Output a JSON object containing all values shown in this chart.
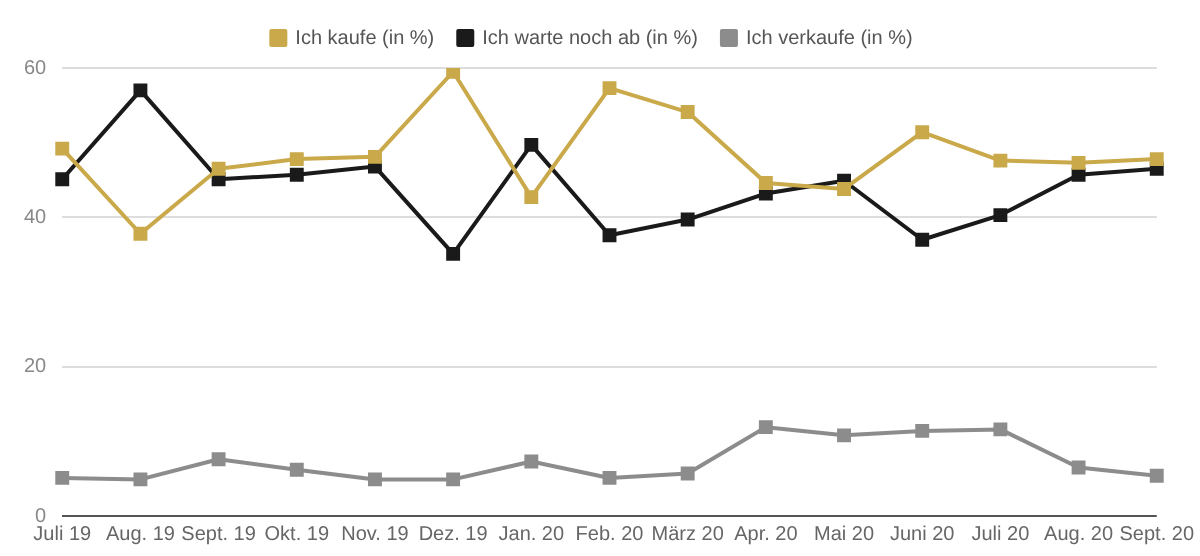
{
  "chart_data": {
    "type": "line",
    "categories": [
      "Juli 19",
      "Aug. 19",
      "Sept. 19",
      "Okt. 19",
      "Nov. 19",
      "Dez. 19",
      "Jan. 20",
      "Feb. 20",
      "März 20",
      "Apr. 20",
      "Mai 20",
      "Juni 20",
      "Juli 20",
      "Aug. 20",
      "Sept. 20"
    ],
    "series": [
      {
        "name": "Ich kaufe (in %)",
        "color": "#c9a94a",
        "values": [
          49.2,
          37.8,
          46.5,
          47.8,
          48.1,
          59.5,
          42.7,
          57.3,
          54.1,
          44.6,
          43.8,
          51.4,
          47.6,
          47.3,
          47.8
        ]
      },
      {
        "name": "Ich warte noch ab (in %)",
        "color": "#1a1a1a",
        "values": [
          45.1,
          57,
          45.1,
          45.7,
          46.8,
          35.1,
          49.7,
          37.6,
          39.7,
          43.2,
          44.9,
          37,
          40.3,
          45.7,
          46.5
        ]
      },
      {
        "name": "Ich verkaufe (in %)",
        "color": "#8c8c8c",
        "values": [
          5.1,
          4.9,
          7.6,
          6.2,
          4.9,
          4.9,
          7.3,
          5.1,
          5.7,
          11.9,
          10.8,
          11.4,
          11.6,
          6.5,
          5.4
        ]
      }
    ],
    "ylim": [
      0,
      60
    ],
    "yticks": [
      0,
      20,
      40,
      60
    ],
    "grid": "y",
    "legend": "top",
    "marker": "square",
    "line_style": "solid"
  }
}
